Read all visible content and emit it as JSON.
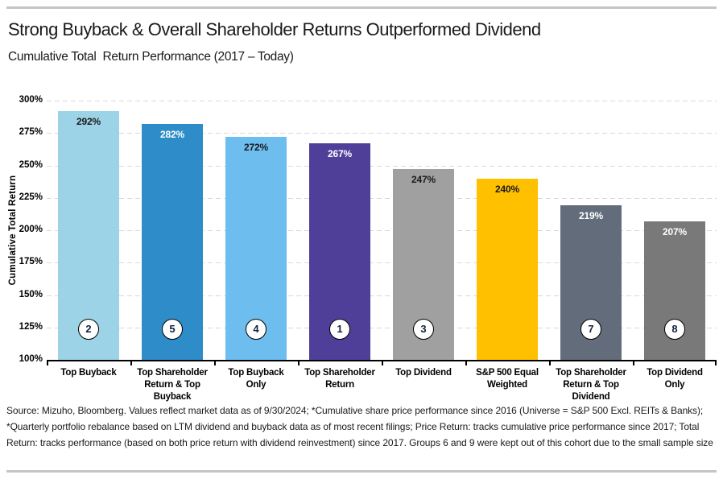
{
  "header": {
    "title": "Strong Buyback & Overall Shareholder Returns Outperformed Dividend",
    "subtitle": "Cumulative Total  Return Performance (2017 – Today)"
  },
  "footer": {
    "source_note": "Source: Mizuho, Bloomberg. Values reflect market data as of 9/30/2024; *Cumulative share price performance since 2016 (Universe = S&P 500 Excl. REITs & Banks); *Quarterly portfolio rebalance based on LTM dividend and buyback data as of most recent filings; Price Return: tracks cumulative price performance since 2017; Total Return: tracks performance (based on both price return with dividend reinvestment) since 2017. Groups 6 and 9 were kept out of this cohort due to the small sample size"
  },
  "chart_data": {
    "type": "bar",
    "title": "Strong Buyback & Overall Shareholder Returns Outperformed Dividend",
    "subtitle": "Cumulative Total  Return Performance (2017 – Today)",
    "xlabel": "",
    "ylabel": "Cumulative Total Return",
    "ylim": [
      100,
      300
    ],
    "yticks": [
      100,
      125,
      150,
      175,
      200,
      225,
      250,
      275,
      300
    ],
    "ytick_suffix": "%",
    "grid": "horizontal-dashed",
    "legend": "none",
    "categories": [
      "Top Buyback",
      "Top Shareholder Return & Top Buyback",
      "Top Buyback Only",
      "Top Shareholder Return",
      "Top Dividend",
      "S&P 500 Equal Weighted",
      "Top Shareholder Return & Top Dividend",
      "Top Dividend Only"
    ],
    "series": [
      {
        "name": "Cumulative Total Return",
        "values": [
          292,
          282,
          272,
          267,
          247,
          240,
          219,
          207
        ]
      }
    ],
    "value_labels": [
      "292%",
      "282%",
      "272%",
      "267%",
      "247%",
      "240%",
      "219%",
      "207%"
    ],
    "group_numbers": [
      "2",
      "5",
      "4",
      "1",
      "3",
      null,
      "7",
      "8"
    ],
    "bar_colors": [
      "#9cd3e6",
      "#2e8dc8",
      "#6dbdef",
      "#4f3f99",
      "#a0a0a0",
      "#ffc000",
      "#636c7a",
      "#797979"
    ],
    "value_label_colors": [
      "#1a1a1a",
      "#ffffff",
      "#1a1a1a",
      "#ffffff",
      "#1a1a1a",
      "#1a1a1a",
      "#ffffff",
      "#ffffff"
    ],
    "colors": {
      "gridline": "#d9d9d9",
      "axis": "#000000",
      "divider": "#c5c5c5",
      "circle_fill": "#ffffff",
      "circle_border": "#000000"
    }
  }
}
